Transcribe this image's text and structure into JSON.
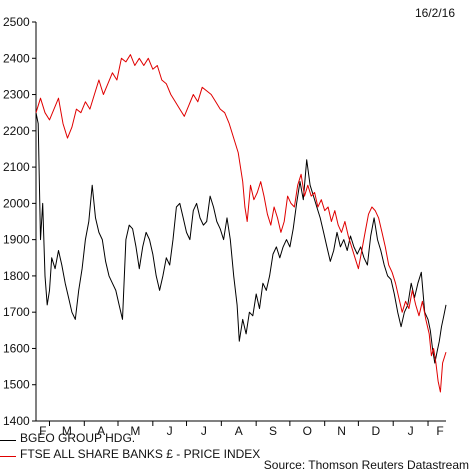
{
  "date_stamp": "16/2/16",
  "source": "Source: Thomson Reuters Datastream",
  "chart_data": {
    "type": "line",
    "title": "",
    "xlabel": "",
    "ylabel": "",
    "ylim": [
      1400,
      2500
    ],
    "yticks": [
      1400,
      1500,
      1600,
      1700,
      1800,
      1900,
      2000,
      2100,
      2200,
      2300,
      2400,
      2500
    ],
    "xlim": [
      "2015-02-16",
      "2016-02-16"
    ],
    "xtick_labels": [
      "F",
      "M",
      "A",
      "M",
      "J",
      "J",
      "A",
      "S",
      "O",
      "N",
      "D",
      "J",
      "F"
    ],
    "xtick_dates": [
      "2015-02-28",
      "2015-03-31",
      "2015-04-30",
      "2015-05-31",
      "2015-06-30",
      "2015-07-31",
      "2015-08-31",
      "2015-09-30",
      "2015-10-31",
      "2015-11-30",
      "2015-12-31",
      "2016-01-31",
      "2016-02-16"
    ],
    "grid": false,
    "legend": "bottom-left",
    "series": [
      {
        "name": "BGEO GROUP HDG.",
        "color": "#000000",
        "points": [
          [
            "2015-02-16",
            2250
          ],
          [
            "2015-02-18",
            2220
          ],
          [
            "2015-02-20",
            1900
          ],
          [
            "2015-02-22",
            2000
          ],
          [
            "2015-02-24",
            1800
          ],
          [
            "2015-02-26",
            1720
          ],
          [
            "2015-02-28",
            1760
          ],
          [
            "2015-03-02",
            1850
          ],
          [
            "2015-03-05",
            1820
          ],
          [
            "2015-03-08",
            1870
          ],
          [
            "2015-03-11",
            1830
          ],
          [
            "2015-03-14",
            1780
          ],
          [
            "2015-03-17",
            1740
          ],
          [
            "2015-03-20",
            1700
          ],
          [
            "2015-03-23",
            1680
          ],
          [
            "2015-03-26",
            1760
          ],
          [
            "2015-03-29",
            1820
          ],
          [
            "2015-04-01",
            1900
          ],
          [
            "2015-04-04",
            1950
          ],
          [
            "2015-04-07",
            2050
          ],
          [
            "2015-04-10",
            1960
          ],
          [
            "2015-04-13",
            1920
          ],
          [
            "2015-04-16",
            1900
          ],
          [
            "2015-04-19",
            1840
          ],
          [
            "2015-04-22",
            1800
          ],
          [
            "2015-04-25",
            1780
          ],
          [
            "2015-04-28",
            1760
          ],
          [
            "2015-05-01",
            1720
          ],
          [
            "2015-05-04",
            1680
          ],
          [
            "2015-05-07",
            1900
          ],
          [
            "2015-05-10",
            1940
          ],
          [
            "2015-05-13",
            1930
          ],
          [
            "2015-05-16",
            1880
          ],
          [
            "2015-05-19",
            1820
          ],
          [
            "2015-05-22",
            1880
          ],
          [
            "2015-05-25",
            1920
          ],
          [
            "2015-05-28",
            1900
          ],
          [
            "2015-05-31",
            1860
          ],
          [
            "2015-06-03",
            1800
          ],
          [
            "2015-06-06",
            1760
          ],
          [
            "2015-06-09",
            1800
          ],
          [
            "2015-06-12",
            1850
          ],
          [
            "2015-06-15",
            1830
          ],
          [
            "2015-06-18",
            1900
          ],
          [
            "2015-06-21",
            1990
          ],
          [
            "2015-06-24",
            2000
          ],
          [
            "2015-06-27",
            1960
          ],
          [
            "2015-06-30",
            1920
          ],
          [
            "2015-07-03",
            1900
          ],
          [
            "2015-07-06",
            1980
          ],
          [
            "2015-07-09",
            2000
          ],
          [
            "2015-07-12",
            1960
          ],
          [
            "2015-07-15",
            1940
          ],
          [
            "2015-07-18",
            1950
          ],
          [
            "2015-07-21",
            2020
          ],
          [
            "2015-07-24",
            1990
          ],
          [
            "2015-07-27",
            1950
          ],
          [
            "2015-07-30",
            1930
          ],
          [
            "2015-08-02",
            1900
          ],
          [
            "2015-08-05",
            1960
          ],
          [
            "2015-08-08",
            1900
          ],
          [
            "2015-08-11",
            1800
          ],
          [
            "2015-08-14",
            1720
          ],
          [
            "2015-08-16",
            1620
          ],
          [
            "2015-08-19",
            1680
          ],
          [
            "2015-08-22",
            1640
          ],
          [
            "2015-08-25",
            1700
          ],
          [
            "2015-08-28",
            1690
          ],
          [
            "2015-08-31",
            1750
          ],
          [
            "2015-09-03",
            1710
          ],
          [
            "2015-09-06",
            1780
          ],
          [
            "2015-09-09",
            1760
          ],
          [
            "2015-09-12",
            1800
          ],
          [
            "2015-09-15",
            1860
          ],
          [
            "2015-09-18",
            1880
          ],
          [
            "2015-09-21",
            1850
          ],
          [
            "2015-09-24",
            1880
          ],
          [
            "2015-09-27",
            1900
          ],
          [
            "2015-09-30",
            1880
          ],
          [
            "2015-10-03",
            1930
          ],
          [
            "2015-10-06",
            2000
          ],
          [
            "2015-10-09",
            2060
          ],
          [
            "2015-10-12",
            2010
          ],
          [
            "2015-10-15",
            2120
          ],
          [
            "2015-10-18",
            2050
          ],
          [
            "2015-10-21",
            2020
          ],
          [
            "2015-10-24",
            1990
          ],
          [
            "2015-10-27",
            1960
          ],
          [
            "2015-10-30",
            1920
          ],
          [
            "2015-11-02",
            1880
          ],
          [
            "2015-11-05",
            1840
          ],
          [
            "2015-11-08",
            1870
          ],
          [
            "2015-11-11",
            1920
          ],
          [
            "2015-11-14",
            1880
          ],
          [
            "2015-11-17",
            1900
          ],
          [
            "2015-11-20",
            1870
          ],
          [
            "2015-11-23",
            1910
          ],
          [
            "2015-11-26",
            1880
          ],
          [
            "2015-11-29",
            1860
          ],
          [
            "2015-12-02",
            1880
          ],
          [
            "2015-12-05",
            1850
          ],
          [
            "2015-12-08",
            1830
          ],
          [
            "2015-12-11",
            1910
          ],
          [
            "2015-12-14",
            1960
          ],
          [
            "2015-12-17",
            1900
          ],
          [
            "2015-12-20",
            1870
          ],
          [
            "2015-12-23",
            1830
          ],
          [
            "2015-12-26",
            1800
          ],
          [
            "2015-12-29",
            1790
          ],
          [
            "2016-01-01",
            1750
          ],
          [
            "2016-01-04",
            1700
          ],
          [
            "2016-01-07",
            1660
          ],
          [
            "2016-01-10",
            1700
          ],
          [
            "2016-01-13",
            1720
          ],
          [
            "2016-01-16",
            1780
          ],
          [
            "2016-01-19",
            1740
          ],
          [
            "2016-01-22",
            1780
          ],
          [
            "2016-01-25",
            1810
          ],
          [
            "2016-01-28",
            1700
          ],
          [
            "2016-01-31",
            1680
          ],
          [
            "2016-02-02",
            1650
          ],
          [
            "2016-02-04",
            1600
          ],
          [
            "2016-02-06",
            1560
          ],
          [
            "2016-02-08",
            1590
          ],
          [
            "2016-02-10",
            1620
          ],
          [
            "2016-02-12",
            1660
          ],
          [
            "2016-02-14",
            1690
          ],
          [
            "2016-02-16",
            1720
          ]
        ]
      },
      {
        "name": "FTSE ALL SHARE BANKS £ - PRICE INDEX",
        "color": "#e00000",
        "points": [
          [
            "2015-02-16",
            2250
          ],
          [
            "2015-02-20",
            2290
          ],
          [
            "2015-02-24",
            2250
          ],
          [
            "2015-02-28",
            2230
          ],
          [
            "2015-03-04",
            2260
          ],
          [
            "2015-03-08",
            2290
          ],
          [
            "2015-03-12",
            2220
          ],
          [
            "2015-03-16",
            2180
          ],
          [
            "2015-03-20",
            2210
          ],
          [
            "2015-03-24",
            2260
          ],
          [
            "2015-03-28",
            2250
          ],
          [
            "2015-04-01",
            2280
          ],
          [
            "2015-04-05",
            2260
          ],
          [
            "2015-04-09",
            2300
          ],
          [
            "2015-04-13",
            2340
          ],
          [
            "2015-04-17",
            2300
          ],
          [
            "2015-04-21",
            2330
          ],
          [
            "2015-04-25",
            2360
          ],
          [
            "2015-04-29",
            2340
          ],
          [
            "2015-05-03",
            2400
          ],
          [
            "2015-05-07",
            2390
          ],
          [
            "2015-05-11",
            2410
          ],
          [
            "2015-05-15",
            2380
          ],
          [
            "2015-05-19",
            2400
          ],
          [
            "2015-05-23",
            2380
          ],
          [
            "2015-05-27",
            2400
          ],
          [
            "2015-05-31",
            2370
          ],
          [
            "2015-06-04",
            2380
          ],
          [
            "2015-06-08",
            2340
          ],
          [
            "2015-06-12",
            2330
          ],
          [
            "2015-06-16",
            2300
          ],
          [
            "2015-06-20",
            2280
          ],
          [
            "2015-06-24",
            2260
          ],
          [
            "2015-06-28",
            2240
          ],
          [
            "2015-07-02",
            2270
          ],
          [
            "2015-07-06",
            2300
          ],
          [
            "2015-07-10",
            2280
          ],
          [
            "2015-07-14",
            2320
          ],
          [
            "2015-07-18",
            2310
          ],
          [
            "2015-07-22",
            2300
          ],
          [
            "2015-07-26",
            2280
          ],
          [
            "2015-07-30",
            2260
          ],
          [
            "2015-08-03",
            2250
          ],
          [
            "2015-08-07",
            2220
          ],
          [
            "2015-08-11",
            2180
          ],
          [
            "2015-08-15",
            2140
          ],
          [
            "2015-08-19",
            2060
          ],
          [
            "2015-08-21",
            1990
          ],
          [
            "2015-08-23",
            1950
          ],
          [
            "2015-08-26",
            2050
          ],
          [
            "2015-08-29",
            2010
          ],
          [
            "2015-09-01",
            2030
          ],
          [
            "2015-09-04",
            2060
          ],
          [
            "2015-09-07",
            2020
          ],
          [
            "2015-09-10",
            1970
          ],
          [
            "2015-09-13",
            1940
          ],
          [
            "2015-09-16",
            1990
          ],
          [
            "2015-09-19",
            1960
          ],
          [
            "2015-09-22",
            1920
          ],
          [
            "2015-09-25",
            1950
          ],
          [
            "2015-09-28",
            2020
          ],
          [
            "2015-10-01",
            2000
          ],
          [
            "2015-10-04",
            1990
          ],
          [
            "2015-10-07",
            2050
          ],
          [
            "2015-10-10",
            2080
          ],
          [
            "2015-10-13",
            2020
          ],
          [
            "2015-10-16",
            2050
          ],
          [
            "2015-10-19",
            2020
          ],
          [
            "2015-10-22",
            2030
          ],
          [
            "2015-10-25",
            1990
          ],
          [
            "2015-10-28",
            2010
          ],
          [
            "2015-10-31",
            1980
          ],
          [
            "2015-11-03",
            1990
          ],
          [
            "2015-11-06",
            1950
          ],
          [
            "2015-11-09",
            1980
          ],
          [
            "2015-11-12",
            1940
          ],
          [
            "2015-11-15",
            1920
          ],
          [
            "2015-11-18",
            1950
          ],
          [
            "2015-11-21",
            1910
          ],
          [
            "2015-11-24",
            1880
          ],
          [
            "2015-11-27",
            1850
          ],
          [
            "2015-11-30",
            1820
          ],
          [
            "2015-12-03",
            1870
          ],
          [
            "2015-12-06",
            1920
          ],
          [
            "2015-12-09",
            1970
          ],
          [
            "2015-12-12",
            1990
          ],
          [
            "2015-12-15",
            1980
          ],
          [
            "2015-12-18",
            1960
          ],
          [
            "2015-12-21",
            1920
          ],
          [
            "2015-12-24",
            1880
          ],
          [
            "2015-12-27",
            1830
          ],
          [
            "2015-12-30",
            1810
          ],
          [
            "2016-01-02",
            1780
          ],
          [
            "2016-01-05",
            1740
          ],
          [
            "2016-01-08",
            1700
          ],
          [
            "2016-01-11",
            1730
          ],
          [
            "2016-01-14",
            1710
          ],
          [
            "2016-01-17",
            1760
          ],
          [
            "2016-01-20",
            1720
          ],
          [
            "2016-01-23",
            1690
          ],
          [
            "2016-01-26",
            1730
          ],
          [
            "2016-01-29",
            1680
          ],
          [
            "2016-02-01",
            1640
          ],
          [
            "2016-02-03",
            1580
          ],
          [
            "2016-02-05",
            1600
          ],
          [
            "2016-02-07",
            1560
          ],
          [
            "2016-02-09",
            1510
          ],
          [
            "2016-02-11",
            1480
          ],
          [
            "2016-02-13",
            1560
          ],
          [
            "2016-02-16",
            1590
          ]
        ]
      }
    ]
  }
}
